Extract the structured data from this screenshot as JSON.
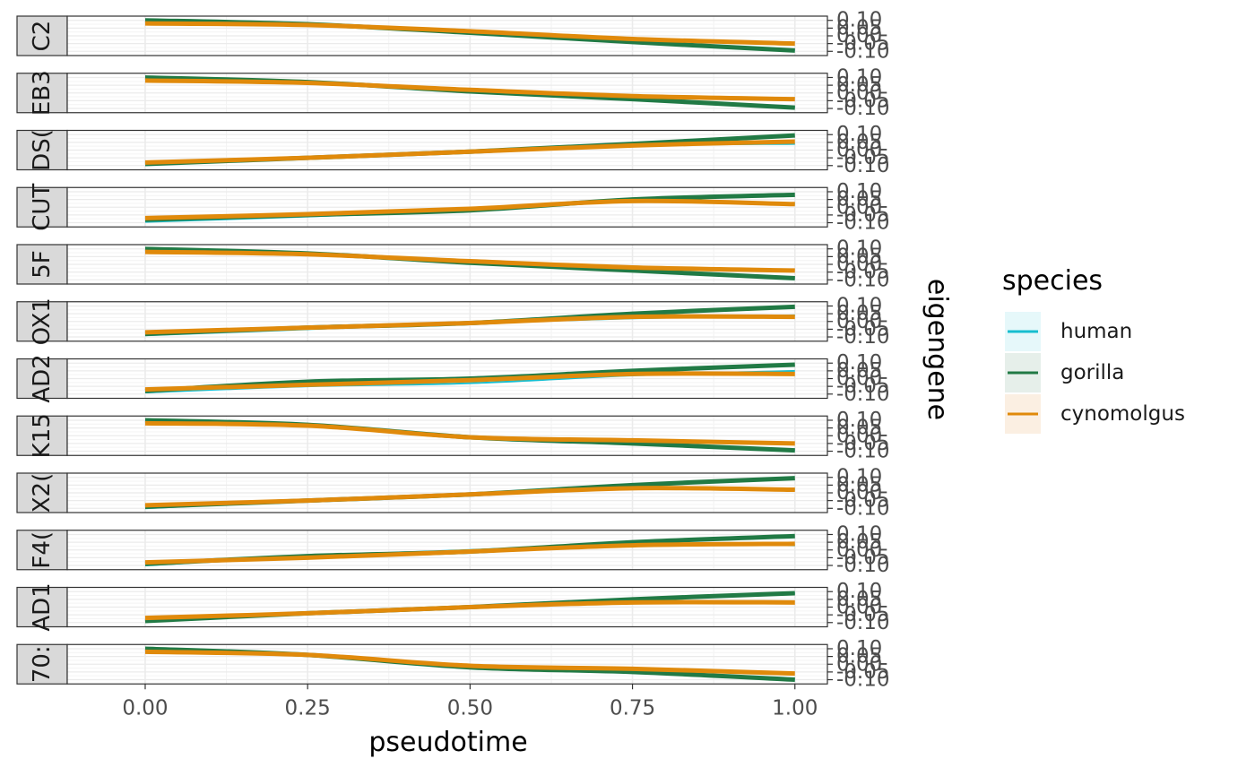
{
  "chart_data": {
    "type": "line",
    "x_label": "pseudotime",
    "y_label": "eigengene",
    "x_range": [
      -0.12,
      1.05
    ],
    "x_ticks": [
      0.0,
      0.25,
      0.5,
      0.75,
      1.0
    ],
    "x_tick_labels": [
      "0.00",
      "0.25",
      "0.50",
      "0.75",
      "1.00"
    ],
    "y_range": [
      -0.11,
      0.11
    ],
    "y_ticks": [
      0.1,
      0.05,
      0.0,
      -0.05,
      -0.1
    ],
    "y_tick_labels": [
      "0.10",
      "0.05",
      "0.00",
      "-0.05",
      "-0.10"
    ],
    "grid": true,
    "legend": {
      "title": "species",
      "position": "right",
      "entries": [
        {
          "name": "human",
          "color": "#17BECF",
          "fill": "#E6F8FA"
        },
        {
          "name": "gorilla",
          "color": "#217A45",
          "fill": "#E6EFEA"
        },
        {
          "name": "cynomolgus",
          "color": "#E08A0B",
          "fill": "#FBEFE2"
        }
      ]
    },
    "x": [
      0.0,
      0.25,
      0.5,
      0.75,
      1.0
    ],
    "facets": [
      {
        "label": "C2",
        "series": [
          {
            "name": "human",
            "values": [
              0.1,
              0.075,
              0.02,
              -0.04,
              -0.095
            ]
          },
          {
            "name": "gorilla",
            "values": [
              0.1,
              0.075,
              0.02,
              -0.04,
              -0.095
            ]
          },
          {
            "name": "cynomolgus",
            "values": [
              0.08,
              0.07,
              0.03,
              -0.02,
              -0.05
            ]
          }
        ]
      },
      {
        "label": "EB3",
        "series": [
          {
            "name": "human",
            "values": [
              0.1,
              0.07,
              0.01,
              -0.04,
              -0.095
            ]
          },
          {
            "name": "gorilla",
            "values": [
              0.1,
              0.07,
              0.01,
              -0.04,
              -0.095
            ]
          },
          {
            "name": "cynomolgus",
            "values": [
              0.08,
              0.065,
              0.02,
              -0.02,
              -0.04
            ]
          }
        ]
      },
      {
        "label": "DS(",
        "series": [
          {
            "name": "human",
            "values": [
              -0.09,
              -0.05,
              -0.01,
              0.03,
              0.04
            ]
          },
          {
            "name": "gorilla",
            "values": [
              -0.09,
              -0.05,
              -0.01,
              0.04,
              0.095
            ]
          },
          {
            "name": "cynomolgus",
            "values": [
              -0.08,
              -0.05,
              -0.01,
              0.03,
              0.055
            ]
          }
        ]
      },
      {
        "label": "CUT",
        "series": [
          {
            "name": "human",
            "values": [
              -0.095,
              -0.06,
              -0.02,
              0.04,
              0.02
            ]
          },
          {
            "name": "gorilla",
            "values": [
              -0.08,
              -0.05,
              -0.02,
              0.05,
              0.08
            ]
          },
          {
            "name": "cynomolgus",
            "values": [
              -0.07,
              -0.045,
              -0.01,
              0.04,
              0.02
            ]
          }
        ]
      },
      {
        "label": "5F",
        "series": [
          {
            "name": "human",
            "values": [
              0.1,
              0.07,
              0.01,
              -0.04,
              -0.09
            ]
          },
          {
            "name": "gorilla",
            "values": [
              0.1,
              0.07,
              0.01,
              -0.04,
              -0.09
            ]
          },
          {
            "name": "cynomolgus",
            "values": [
              0.08,
              0.065,
              0.02,
              -0.02,
              -0.04
            ]
          }
        ]
      },
      {
        "label": "OX1",
        "series": [
          {
            "name": "human",
            "values": [
              -0.09,
              -0.05,
              -0.01,
              0.02,
              0.04
            ]
          },
          {
            "name": "gorilla",
            "values": [
              -0.08,
              -0.04,
              -0.01,
              0.05,
              0.095
            ]
          },
          {
            "name": "cynomolgus",
            "values": [
              -0.07,
              -0.04,
              -0.01,
              0.03,
              0.03
            ]
          }
        ]
      },
      {
        "label": "AD2",
        "series": [
          {
            "name": "human",
            "values": [
              -0.09,
              -0.05,
              -0.03,
              0.02,
              0.05
            ]
          },
          {
            "name": "gorilla",
            "values": [
              -0.08,
              -0.02,
              0.0,
              0.05,
              0.09
            ]
          },
          {
            "name": "cynomolgus",
            "values": [
              -0.07,
              -0.04,
              -0.01,
              0.03,
              0.03
            ]
          }
        ]
      },
      {
        "label": "K15",
        "series": [
          {
            "name": "human",
            "values": [
              0.1,
              0.07,
              -0.01,
              -0.05,
              -0.095
            ]
          },
          {
            "name": "gorilla",
            "values": [
              0.1,
              0.07,
              -0.01,
              -0.05,
              -0.095
            ]
          },
          {
            "name": "cynomolgus",
            "values": [
              0.08,
              0.065,
              -0.01,
              -0.03,
              -0.05
            ]
          }
        ]
      },
      {
        "label": "X2(",
        "series": [
          {
            "name": "human",
            "values": [
              -0.1,
              -0.05,
              -0.01,
              0.03,
              0.02
            ]
          },
          {
            "name": "gorilla",
            "values": [
              -0.09,
              -0.05,
              -0.01,
              0.05,
              0.095
            ]
          },
          {
            "name": "cynomolgus",
            "values": [
              -0.08,
              -0.05,
              -0.01,
              0.03,
              0.02
            ]
          }
        ]
      },
      {
        "label": "F4(",
        "series": [
          {
            "name": "human",
            "values": [
              -0.1,
              -0.04,
              0.0,
              0.04,
              0.03
            ]
          },
          {
            "name": "gorilla",
            "values": [
              -0.09,
              -0.04,
              -0.01,
              0.05,
              0.09
            ]
          },
          {
            "name": "cynomolgus",
            "values": [
              -0.08,
              -0.05,
              -0.01,
              0.03,
              0.04
            ]
          }
        ]
      },
      {
        "label": "AD1",
        "series": [
          {
            "name": "human",
            "values": [
              -0.09,
              -0.04,
              0.0,
              0.05,
              0.09
            ]
          },
          {
            "name": "gorilla",
            "values": [
              -0.09,
              -0.04,
              0.0,
              0.05,
              0.09
            ]
          },
          {
            "name": "cynomolgus",
            "values": [
              -0.07,
              -0.04,
              0.0,
              0.03,
              0.03
            ]
          }
        ]
      },
      {
        "label": "70:",
        "series": [
          {
            "name": "human",
            "values": [
              0.1,
              0.06,
              -0.02,
              -0.05,
              -0.1
            ]
          },
          {
            "name": "gorilla",
            "values": [
              0.1,
              0.06,
              -0.02,
              -0.05,
              -0.1
            ]
          },
          {
            "name": "cynomolgus",
            "values": [
              0.08,
              0.06,
              -0.01,
              -0.03,
              -0.06
            ]
          }
        ]
      }
    ]
  }
}
